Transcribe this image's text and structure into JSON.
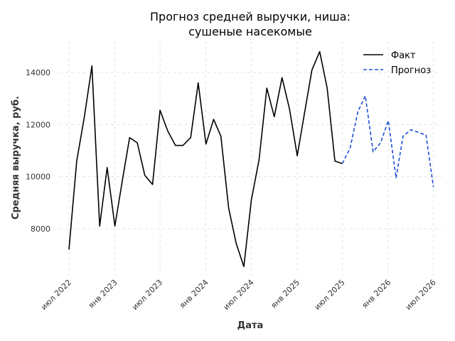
{
  "chart_data": {
    "type": "line",
    "title_lines": [
      "Прогноз средней выручки, ниша:",
      "сушеные насекомые"
    ],
    "xlabel": "Дата",
    "ylabel": "Средняя выручка, руб.",
    "x_tick_labels": [
      "июл 2022",
      "янв 2023",
      "июл 2023",
      "янв 2024",
      "июл 2024",
      "янв 2025",
      "июл 2025",
      "янв 2026",
      "июл 2026"
    ],
    "x_tick_dates": [
      "2022-07-01",
      "2023-01-01",
      "2023-07-01",
      "2024-01-01",
      "2024-07-01",
      "2025-01-01",
      "2025-07-01",
      "2026-01-01",
      "2026-07-01"
    ],
    "y_ticks": [
      8000,
      10000,
      12000,
      14000
    ],
    "ylim": [
      6200,
      15200
    ],
    "xlim": [
      "2022-05-25",
      "2026-08-05"
    ],
    "grid": true,
    "legend_position": "top-right",
    "series": [
      {
        "name": "Факт",
        "color": "#000000",
        "style": "solid",
        "points": [
          [
            "2022-07-01",
            7200
          ],
          [
            "2022-08-01",
            10600
          ],
          [
            "2022-09-01",
            12300
          ],
          [
            "2022-10-01",
            14250
          ],
          [
            "2022-11-01",
            8100
          ],
          [
            "2022-12-01",
            10350
          ],
          [
            "2023-01-01",
            8100
          ],
          [
            "2023-02-01",
            9900
          ],
          [
            "2023-03-01",
            11500
          ],
          [
            "2023-04-01",
            11300
          ],
          [
            "2023-05-01",
            10050
          ],
          [
            "2023-06-01",
            9700
          ],
          [
            "2023-07-01",
            12550
          ],
          [
            "2023-08-01",
            11750
          ],
          [
            "2023-09-01",
            11200
          ],
          [
            "2023-10-01",
            11200
          ],
          [
            "2023-11-01",
            11500
          ],
          [
            "2023-12-01",
            13600
          ],
          [
            "2024-01-01",
            11250
          ],
          [
            "2024-02-01",
            12200
          ],
          [
            "2024-03-01",
            11550
          ],
          [
            "2024-04-01",
            8800
          ],
          [
            "2024-05-01",
            7450
          ],
          [
            "2024-06-01",
            6550
          ],
          [
            "2024-07-01",
            9100
          ],
          [
            "2024-08-01",
            10650
          ],
          [
            "2024-09-01",
            13400
          ],
          [
            "2024-10-01",
            12300
          ],
          [
            "2024-11-01",
            13800
          ],
          [
            "2024-12-01",
            12600
          ],
          [
            "2025-01-01",
            10800
          ],
          [
            "2025-02-01",
            12550
          ],
          [
            "2025-03-01",
            14100
          ],
          [
            "2025-04-01",
            14800
          ],
          [
            "2025-05-01",
            13400
          ],
          [
            "2025-06-01",
            10600
          ],
          [
            "2025-07-01",
            10500
          ]
        ]
      },
      {
        "name": "Прогноз",
        "color": "#1f4fd6",
        "style": "dashed",
        "points": [
          [
            "2025-07-01",
            10500
          ],
          [
            "2025-08-01",
            11100
          ],
          [
            "2025-09-01",
            12500
          ],
          [
            "2025-10-01",
            13100
          ],
          [
            "2025-11-01",
            10950
          ],
          [
            "2025-12-01",
            11300
          ],
          [
            "2026-01-01",
            12150
          ],
          [
            "2026-02-01",
            9950
          ],
          [
            "2026-03-01",
            11550
          ],
          [
            "2026-04-01",
            11800
          ],
          [
            "2026-05-01",
            11700
          ],
          [
            "2026-06-01",
            11600
          ],
          [
            "2026-07-01",
            9600
          ]
        ]
      }
    ]
  }
}
